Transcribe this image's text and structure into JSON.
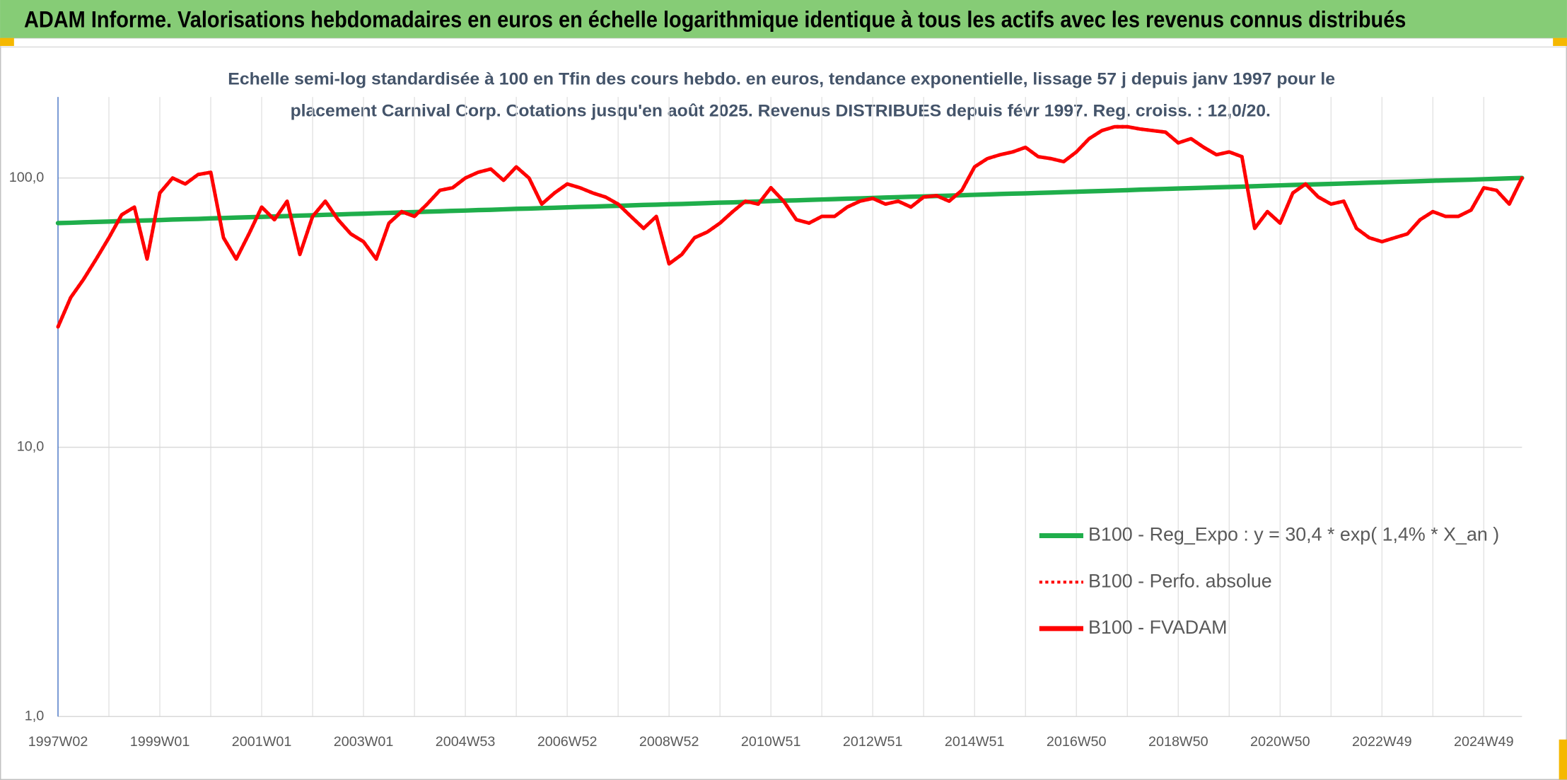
{
  "header": {
    "title": "ADAM Informe. Valorisations hebdomadaires en euros en échelle logarithmique identique à tous les actifs avec les revenus connus distribués"
  },
  "chart_data": {
    "type": "line",
    "subtitle": [
      "Echelle semi-log standardisée à 100 en Tfin des cours hebdo. en euros, tendance exponentielle, lissage 57 j depuis janv 1997 pour le",
      "placement Carnival Corp. Cotations jusqu'en août 2025. Revenus DISTRIBUES depuis févr 1997. Reg. croiss. : 12,0/20."
    ],
    "categories": [
      "1997W02",
      null,
      null,
      null,
      null,
      null,
      null,
      null,
      "1999W01",
      null,
      null,
      null,
      null,
      null,
      null,
      null,
      "2001W01",
      null,
      null,
      null,
      null,
      null,
      null,
      null,
      "2003W01",
      null,
      null,
      null,
      null,
      null,
      null,
      null,
      "2004W53",
      null,
      null,
      null,
      null,
      null,
      null,
      null,
      "2006W52",
      null,
      null,
      null,
      null,
      null,
      null,
      null,
      "2008W52",
      null,
      null,
      null,
      null,
      null,
      null,
      null,
      "2010W51",
      null,
      null,
      null,
      null,
      null,
      null,
      null,
      "2012W51",
      null,
      null,
      null,
      null,
      null,
      null,
      null,
      "2014W51",
      null,
      null,
      null,
      null,
      null,
      null,
      null,
      "2016W50",
      null,
      null,
      null,
      null,
      null,
      null,
      null,
      "2018W50",
      null,
      null,
      null,
      null,
      null,
      null,
      null,
      "2020W50",
      null,
      null,
      null,
      null,
      null,
      null,
      null,
      "2022W49",
      null,
      null,
      null,
      null,
      null,
      null,
      null,
      "2024W49",
      null,
      null,
      null
    ],
    "log_y": true,
    "ylim": [
      1,
      200
    ],
    "yticks": [
      {
        "value": 1,
        "label": "1,0"
      },
      {
        "value": 10,
        "label": "10,0"
      },
      {
        "value": 100,
        "label": "100,0"
      }
    ],
    "grid": true,
    "legend": "lower right",
    "series": [
      {
        "name": "B100 - Reg_Expo : y = 30,4 * exp( 1,4% * X_an )",
        "color": "#1fae4b",
        "dash": "solid",
        "values": [
          68.0,
          68.2,
          68.5,
          68.7,
          68.9,
          69.2,
          69.4,
          69.6,
          69.8,
          70.1,
          70.3,
          70.5,
          70.8,
          71.0,
          71.3,
          71.5,
          71.7,
          72.0,
          72.2,
          72.5,
          72.7,
          73.0,
          73.2,
          73.5,
          73.7,
          74.0,
          74.2,
          74.5,
          74.7,
          75.0,
          75.2,
          75.5,
          75.7,
          76.0,
          76.2,
          76.5,
          76.8,
          77.0,
          77.3,
          77.5,
          77.8,
          78.1,
          78.3,
          78.6,
          78.8,
          79.1,
          79.4,
          79.6,
          79.9,
          80.1,
          80.4,
          80.7,
          81.0,
          81.2,
          81.5,
          81.8,
          82.1,
          82.4,
          82.6,
          82.9,
          83.2,
          83.5,
          83.8,
          84.0,
          84.3,
          84.6,
          84.9,
          85.2,
          85.4,
          85.7,
          86.0,
          86.3,
          86.6,
          86.9,
          87.2,
          87.5,
          87.7,
          88.0,
          88.3,
          88.6,
          88.9,
          89.2,
          89.5,
          89.8,
          90.1,
          90.5,
          90.8,
          91.1,
          91.4,
          91.7,
          92.0,
          92.3,
          92.6,
          92.9,
          93.2,
          93.6,
          93.9,
          94.2,
          94.5,
          94.8,
          95.1,
          95.4,
          95.7,
          96.1,
          96.4,
          96.7,
          97.0,
          97.3,
          97.7,
          98.0,
          98.3,
          98.6,
          99.0,
          99.3,
          99.7,
          100.0
        ]
      },
      {
        "name": "B100 - Perfo. absolue",
        "color": "#ff0000",
        "dash": "dotted",
        "values": [
          28,
          36,
          42,
          50,
          60,
          73,
          78,
          50,
          88,
          100,
          95,
          103,
          105,
          60,
          50,
          62,
          78,
          70,
          82,
          52,
          72,
          82,
          70,
          62,
          58,
          50,
          68,
          75,
          72,
          80,
          90,
          92,
          100,
          105,
          108,
          98,
          110,
          100,
          80,
          88,
          95,
          92,
          88,
          85,
          80,
          72,
          65,
          72,
          48,
          52,
          60,
          63,
          68,
          75,
          82,
          80,
          92,
          82,
          70,
          68,
          72,
          72,
          78,
          82,
          84,
          80,
          82,
          78,
          85,
          86,
          82,
          90,
          110,
          118,
          122,
          125,
          130,
          120,
          118,
          115,
          125,
          140,
          150,
          155,
          155,
          152,
          150,
          148,
          135,
          140,
          130,
          122,
          125,
          120,
          65,
          75,
          68,
          88,
          95,
          85,
          80,
          82,
          65,
          60,
          58,
          60,
          62,
          70,
          75,
          72,
          72,
          76,
          92,
          90,
          80,
          100
        ]
      },
      {
        "name": "B100 - FVADAM",
        "color": "#ff0000",
        "dash": "solid",
        "values": [
          28,
          36,
          42,
          50,
          60,
          73,
          78,
          50,
          88,
          100,
          95,
          103,
          105,
          60,
          50,
          62,
          78,
          70,
          82,
          52,
          72,
          82,
          70,
          62,
          58,
          50,
          68,
          75,
          72,
          80,
          90,
          92,
          100,
          105,
          108,
          98,
          110,
          100,
          80,
          88,
          95,
          92,
          88,
          85,
          80,
          72,
          65,
          72,
          48,
          52,
          60,
          63,
          68,
          75,
          82,
          80,
          92,
          82,
          70,
          68,
          72,
          72,
          78,
          82,
          84,
          80,
          82,
          78,
          85,
          86,
          82,
          90,
          110,
          118,
          122,
          125,
          130,
          120,
          118,
          115,
          125,
          140,
          150,
          155,
          155,
          152,
          150,
          148,
          135,
          140,
          130,
          122,
          125,
          120,
          65,
          75,
          68,
          88,
          95,
          85,
          80,
          82,
          65,
          60,
          58,
          60,
          62,
          70,
          75,
          72,
          72,
          76,
          92,
          90,
          80,
          100
        ]
      }
    ]
  }
}
